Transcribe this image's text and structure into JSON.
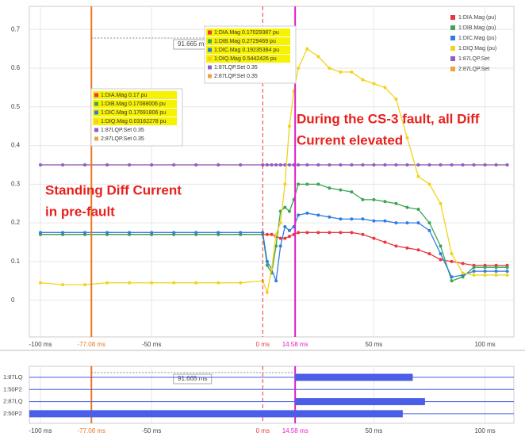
{
  "chart_data": {
    "type": "line",
    "xlim": [
      -105,
      113
    ],
    "ylim": [
      -0.095,
      0.76
    ],
    "xticks": [
      {
        "value": -100,
        "label": "-100 ms"
      },
      {
        "value": -77.08,
        "label": "-77.08 ms"
      },
      {
        "value": -50,
        "label": "-50 ms"
      },
      {
        "value": 0,
        "label": "0 ms"
      },
      {
        "value": 14.58,
        "label": "14.58 ms"
      },
      {
        "value": 50,
        "label": "50 ms"
      },
      {
        "value": 100,
        "label": "100 ms"
      }
    ],
    "yticks": [
      0,
      0.1,
      0.2,
      0.3,
      0.4,
      0.5,
      0.6,
      0.7
    ],
    "grid": true,
    "legend": "top-right",
    "cursors": [
      {
        "value": -77.08,
        "color": "#e87722",
        "style": "solid"
      },
      {
        "value": 0,
        "color": "#e8383d",
        "style": "dashed"
      },
      {
        "value": 14.58,
        "color": "#e020c8",
        "style": "solid"
      }
    ],
    "delta_label": "91.665 ms",
    "x": [
      -100,
      -90,
      -80,
      -70,
      -60,
      -50,
      -40,
      -30,
      -20,
      -10,
      0,
      2,
      4,
      6,
      8,
      10,
      12,
      14,
      16,
      20,
      25,
      30,
      35,
      40,
      45,
      50,
      55,
      60,
      65,
      70,
      75,
      80,
      85,
      90,
      95,
      100,
      105,
      110
    ],
    "series": [
      {
        "name": "1:DIA.Mag (pu)",
        "color": "#e8383d",
        "values": [
          0.17,
          0.17,
          0.17,
          0.17,
          0.17,
          0.17,
          0.17,
          0.17,
          0.17,
          0.17,
          0.17,
          0.17,
          0.17,
          0.165,
          0.16,
          0.16,
          0.165,
          0.17,
          0.175,
          0.175,
          0.175,
          0.175,
          0.175,
          0.175,
          0.17,
          0.16,
          0.15,
          0.14,
          0.135,
          0.13,
          0.12,
          0.105,
          0.1,
          0.095,
          0.09,
          0.09,
          0.09,
          0.09
        ]
      },
      {
        "name": "1:DIB.Mag (pu)",
        "color": "#3aa655",
        "values": [
          0.17,
          0.17,
          0.17,
          0.17,
          0.17,
          0.17,
          0.17,
          0.17,
          0.17,
          0.17,
          0.17,
          0.09,
          0.07,
          0.14,
          0.23,
          0.24,
          0.23,
          0.26,
          0.3,
          0.3,
          0.3,
          0.29,
          0.285,
          0.28,
          0.26,
          0.26,
          0.255,
          0.25,
          0.24,
          0.235,
          0.2,
          0.14,
          0.05,
          0.06,
          0.085,
          0.085,
          0.085,
          0.085
        ]
      },
      {
        "name": "1:DIC.Mag (pu)",
        "color": "#2f7de1",
        "values": [
          0.175,
          0.175,
          0.175,
          0.175,
          0.175,
          0.175,
          0.175,
          0.175,
          0.175,
          0.175,
          0.175,
          0.1,
          0.08,
          0.05,
          0.14,
          0.19,
          0.18,
          0.19,
          0.22,
          0.225,
          0.22,
          0.215,
          0.21,
          0.21,
          0.21,
          0.205,
          0.205,
          0.2,
          0.2,
          0.2,
          0.18,
          0.12,
          0.06,
          0.065,
          0.075,
          0.075,
          0.075,
          0.075
        ]
      },
      {
        "name": "1:DIQ.Mag (pu)",
        "color": "#f2d31b",
        "values": [
          0.045,
          0.04,
          0.04,
          0.045,
          0.045,
          0.045,
          0.045,
          0.045,
          0.045,
          0.045,
          0.05,
          0.02,
          0.08,
          0.17,
          0.2,
          0.3,
          0.45,
          0.54,
          0.6,
          0.65,
          0.63,
          0.6,
          0.59,
          0.59,
          0.57,
          0.56,
          0.55,
          0.52,
          0.42,
          0.32,
          0.3,
          0.25,
          0.12,
          0.07,
          0.065,
          0.065,
          0.065,
          0.065
        ]
      },
      {
        "name": "1:87LQP.Set",
        "color": "#8e5fc7",
        "values": [
          0.35,
          0.35,
          0.35,
          0.35,
          0.35,
          0.35,
          0.35,
          0.35,
          0.35,
          0.35,
          0.35,
          0.35,
          0.35,
          0.35,
          0.35,
          0.35,
          0.35,
          0.35,
          0.35,
          0.35,
          0.35,
          0.35,
          0.35,
          0.35,
          0.35,
          0.35,
          0.35,
          0.35,
          0.35,
          0.35,
          0.35,
          0.35,
          0.35,
          0.35,
          0.35,
          0.35,
          0.35,
          0.35
        ]
      },
      {
        "name": "2:87LQP.Set",
        "color": "#f0a040",
        "values": [
          0.35,
          0.35,
          0.35,
          0.35,
          0.35,
          0.35,
          0.35,
          0.35,
          0.35,
          0.35,
          0.35,
          0.35,
          0.35,
          0.35,
          0.35,
          0.35,
          0.35,
          0.35,
          0.35,
          0.35,
          0.35,
          0.35,
          0.35,
          0.35,
          0.35,
          0.35,
          0.35,
          0.35,
          0.35,
          0.35,
          0.35,
          0.35,
          0.35,
          0.35,
          0.35,
          0.35,
          0.35,
          0.35
        ]
      }
    ],
    "tooltips": [
      {
        "lines": [
          "1:DIA.Mag  0.17 pu",
          "1:DIB.Mag  0.17088006 pu",
          "1:DIC.Mag  0.17691806 pu",
          "1:DIQ.Mag  0.03162278 pu",
          "1:87LQP.Set  0.35",
          "2:87LQP.Set  0.35"
        ]
      },
      {
        "lines": [
          "1:DIA.Mag  0.17029387 pu",
          "1:DIB.Mag  0.2729469 pu",
          "1:DIC.Mag  0.19235384 pu",
          "1:DIQ.Mag  0.5442426 pu",
          "1:87LQP.Set  0.35",
          "2:87LQP.Set  0.35"
        ]
      }
    ],
    "annotations": [
      [
        "Standing Diff Current",
        "in pre-fault"
      ],
      [
        "During the CS-3 fault, all Diff",
        "Current elevated"
      ]
    ],
    "digital": {
      "color": "#4a5ee8",
      "signals": [
        {
          "name": "1:87LQ",
          "intervals": [
            [
              14.58,
              67.5
            ]
          ]
        },
        {
          "name": "1:50P2",
          "intervals": []
        },
        {
          "name": "2:87LQ",
          "intervals": [
            [
              14.58,
              73
            ]
          ]
        },
        {
          "name": "2:50P2",
          "intervals": [
            [
              -105,
              63
            ]
          ]
        }
      ]
    }
  }
}
